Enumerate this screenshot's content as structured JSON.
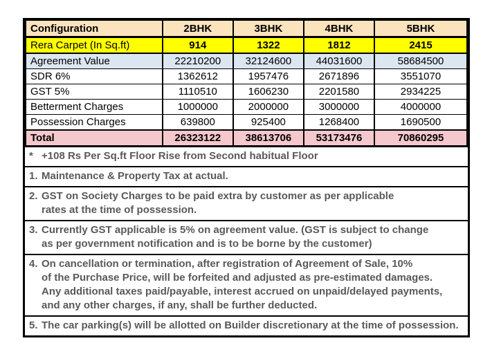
{
  "table": {
    "columns": [
      "Configuration",
      "2BHK",
      "3BHK",
      "4BHK",
      "5BHK"
    ],
    "rows": [
      {
        "label": "Rera Carpet (In Sq.ft)",
        "values": [
          "914",
          "1322",
          "1812",
          "2415"
        ]
      },
      {
        "label": "Agreement Value",
        "values": [
          "22210200",
          "32124600",
          "44031600",
          "58684500"
        ]
      },
      {
        "label": "SDR 6%",
        "values": [
          "1362612",
          "1957476",
          "2671896",
          "3551070"
        ]
      },
      {
        "label": "GST 5%",
        "values": [
          "1110510",
          "1606230",
          "2201580",
          "2934225"
        ]
      },
      {
        "label": "Betterment Charges",
        "values": [
          "1000000",
          "2000000",
          "3000000",
          "4000000"
        ]
      },
      {
        "label": "Possession Charges",
        "values": [
          "639800",
          "925400",
          "1268400",
          "1690500"
        ]
      },
      {
        "label": "Total",
        "values": [
          "26323122",
          "38613706",
          "53173476",
          "70860295"
        ]
      }
    ]
  },
  "notes": [
    {
      "prefix": "*",
      "lines": [
        "+108 Rs Per Sq.ft Floor Rise from Second habitual Floor"
      ]
    },
    {
      "prefix": "1.",
      "lines": [
        "Maintenance & Property Tax at actual."
      ]
    },
    {
      "prefix": "2.",
      "lines": [
        "GST on Society Charges to be paid extra by customer as per applicable",
        "rates at the time of possession."
      ]
    },
    {
      "prefix": "3.",
      "lines": [
        "Currently GST applicable is 5% on agreement value. (GST is subject to change",
        "as per government notification and is to be borne by the customer)"
      ]
    },
    {
      "prefix": "4.",
      "lines": [
        "On cancellation or termination, after registration of Agreement of Sale, 10%",
        "of the Purchase Price, will be forfeited and adjusted as pre-estimated damages.",
        "Any additional taxes paid/payable, interest accrued on unpaid/delayed payments,",
        "and any other charges, if any, shall be further deducted."
      ]
    },
    {
      "prefix": "5.",
      "lines": [
        "The car parking(s) will be allotted on Builder discretionary at the time of possession."
      ]
    }
  ],
  "colors": {
    "header_bg": "#fbe3be",
    "carpet_row_bg": "#ffff00",
    "agreement_row_bg": "#dce6f1",
    "total_row_bg": "#f5c8cd",
    "border": "#000000",
    "table_text": "#000000",
    "notes_text": "#595959"
  }
}
